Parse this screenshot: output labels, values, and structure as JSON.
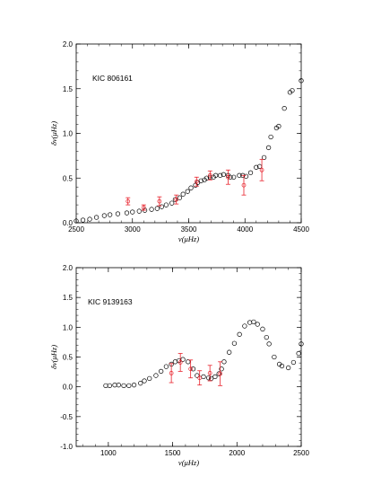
{
  "chart_data": [
    {
      "type": "scatter",
      "annotation": "KIC 806161",
      "xlabel": "ν(μHz)",
      "ylabel": "δν(μHz)",
      "xlim": [
        2500,
        4500
      ],
      "ylim": [
        0.0,
        2.0
      ],
      "xticks": [
        2500,
        3000,
        3500,
        4000,
        4500
      ],
      "yticks": [
        0.0,
        0.5,
        1.0,
        1.5,
        2.0
      ],
      "xtick_labels": [
        "2500",
        "3000",
        "3500",
        "4000",
        "4500"
      ],
      "ytick_labels": [
        "0.0",
        "0.5",
        "1.0",
        "1.5",
        "2.0"
      ],
      "grid": false,
      "series": [
        {
          "style": "model",
          "color": "#000000",
          "marker": "circle-open",
          "x": [
            2500,
            2560,
            2620,
            2680,
            2750,
            2800,
            2870,
            2950,
            3000,
            3060,
            3110,
            3170,
            3220,
            3260,
            3300,
            3350,
            3380,
            3420,
            3450,
            3490,
            3520,
            3560,
            3580,
            3610,
            3640,
            3660,
            3690,
            3720,
            3740,
            3780,
            3810,
            3850,
            3870,
            3900,
            3950,
            3980,
            4010,
            4050,
            4100,
            4130,
            4170,
            4210,
            4230,
            4280,
            4300,
            4350,
            4400,
            4420,
            4500
          ],
          "y": [
            0.02,
            0.03,
            0.04,
            0.06,
            0.08,
            0.09,
            0.1,
            0.11,
            0.12,
            0.13,
            0.14,
            0.15,
            0.16,
            0.18,
            0.2,
            0.22,
            0.26,
            0.28,
            0.32,
            0.35,
            0.39,
            0.42,
            0.45,
            0.47,
            0.48,
            0.5,
            0.51,
            0.51,
            0.53,
            0.53,
            0.54,
            0.53,
            0.51,
            0.51,
            0.53,
            0.53,
            0.52,
            0.56,
            0.62,
            0.63,
            0.73,
            0.84,
            0.96,
            1.06,
            1.08,
            1.28,
            1.46,
            1.48,
            1.59
          ]
        },
        {
          "style": "observed",
          "color": "#e8212b",
          "marker": "circle-open",
          "x": [
            2960,
            3100,
            3240,
            3390,
            3570,
            3690,
            3850,
            3990,
            4150
          ],
          "y": [
            0.24,
            0.17,
            0.24,
            0.26,
            0.46,
            0.53,
            0.51,
            0.42,
            0.59
          ],
          "err": [
            0.04,
            0.03,
            0.05,
            0.05,
            0.05,
            0.05,
            0.08,
            0.11,
            0.12
          ]
        }
      ]
    },
    {
      "type": "scatter",
      "annotation": "KIC 9139163",
      "xlabel": "ν(μHz)",
      "ylabel": "δν(μHz)",
      "xlim": [
        750,
        2500
      ],
      "ylim": [
        -1.0,
        2.0
      ],
      "xticks": [
        1000,
        1500,
        2000,
        2500
      ],
      "yticks": [
        -1.0,
        -0.5,
        0.0,
        0.5,
        1.0,
        1.5,
        2.0
      ],
      "xtick_labels": [
        "1000",
        "1500",
        "2000",
        "2500"
      ],
      "ytick_labels": [
        "-1.0",
        "-0.5",
        "0.0",
        "0.5",
        "1.0",
        "1.5",
        "2.0"
      ],
      "grid": false,
      "series": [
        {
          "style": "model",
          "color": "#000000",
          "marker": "circle-open",
          "x": [
            980,
            1010,
            1050,
            1080,
            1120,
            1160,
            1200,
            1250,
            1280,
            1320,
            1370,
            1410,
            1450,
            1490,
            1520,
            1550,
            1580,
            1620,
            1660,
            1690,
            1740,
            1780,
            1800,
            1830,
            1860,
            1880,
            1900,
            1940,
            1980,
            2020,
            2060,
            2100,
            2130,
            2160,
            2200,
            2230,
            2250,
            2290,
            2330,
            2350,
            2400,
            2440,
            2480,
            2500
          ],
          "y": [
            0.02,
            0.02,
            0.03,
            0.03,
            0.02,
            0.02,
            0.03,
            0.06,
            0.1,
            0.14,
            0.19,
            0.26,
            0.34,
            0.38,
            0.42,
            0.44,
            0.46,
            0.42,
            0.3,
            0.19,
            0.17,
            0.15,
            0.14,
            0.17,
            0.22,
            0.3,
            0.42,
            0.58,
            0.73,
            0.88,
            1.02,
            1.08,
            1.09,
            1.05,
            0.97,
            0.83,
            0.72,
            0.5,
            0.38,
            0.35,
            0.32,
            0.41,
            0.56,
            0.72
          ]
        },
        {
          "style": "observed",
          "color": "#e8212b",
          "marker": "circle-open",
          "x": [
            1490,
            1560,
            1640,
            1710,
            1790,
            1870
          ],
          "y": [
            0.23,
            0.41,
            0.3,
            0.15,
            0.23,
            0.22
          ],
          "err": [
            0.16,
            0.15,
            0.15,
            0.12,
            0.13,
            0.2
          ]
        }
      ]
    }
  ]
}
